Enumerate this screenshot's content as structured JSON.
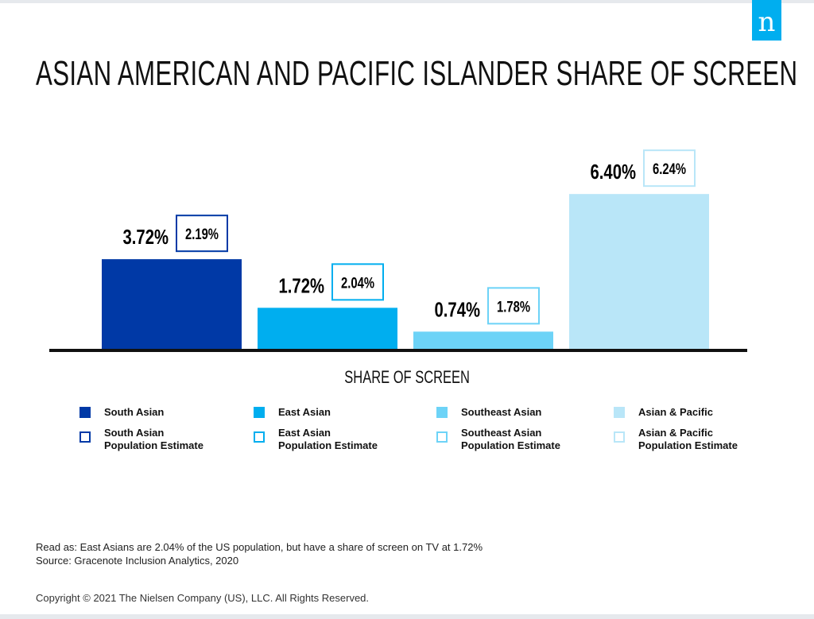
{
  "logo_text": "n",
  "chart_data": {
    "type": "bar",
    "title": "ASIAN AMERICAN AND PACIFIC ISLANDER SHARE OF SCREEN",
    "xlabel": "SHARE OF SCREEN",
    "ylabel": "",
    "ylim": [
      0,
      6.5
    ],
    "grid": false,
    "categories": [
      "South Asian",
      "East Asian",
      "Southeast Asian",
      "Asian & Pacific"
    ],
    "series": [
      {
        "name": "Share of Screen",
        "values": [
          3.72,
          1.72,
          0.74,
          6.4
        ],
        "labels": [
          "3.72%",
          "1.72%",
          "0.74%",
          "6.40%"
        ]
      },
      {
        "name": "Population Estimate",
        "values": [
          2.19,
          2.04,
          1.78,
          6.24
        ],
        "labels": [
          "2.19%",
          "2.04%",
          "1.78%",
          "6.24%"
        ]
      }
    ],
    "colors": [
      "#0039a6",
      "#00aeef",
      "#6dd3f7",
      "#b9e6f8"
    ],
    "legend": [
      {
        "label": "South Asian",
        "est": "South Asian",
        "est2": "Population Estimate"
      },
      {
        "label": "East Asian",
        "est": "East Asian",
        "est2": "Population Estimate"
      },
      {
        "label": "Southeast Asian",
        "est": "Southeast Asian",
        "est2": "Population Estimate"
      },
      {
        "label": "Asian & Pacific",
        "est": "Asian & Pacific",
        "est2": "Population Estimate"
      }
    ],
    "legend_placement": "bottom"
  },
  "notes": {
    "read_as": "Read as: East Asians are 2.04% of the US population, but have a share of screen on TV at 1.72%",
    "source": "Source: Gracenote Inclusion Analytics, 2020"
  },
  "copyright": "Copyright © 2021 The Nielsen Company (US), LLC. All Rights Reserved."
}
